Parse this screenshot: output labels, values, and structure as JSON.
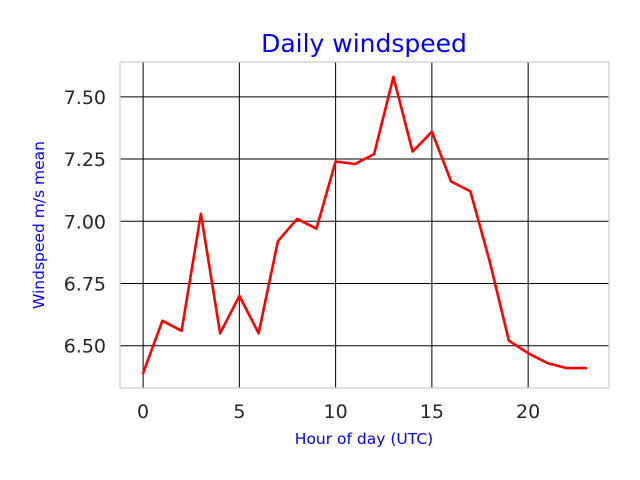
{
  "chart_data": {
    "type": "line",
    "title": "Daily windspeed",
    "xlabel": "Hour of day (UTC)",
    "ylabel": "Windspeed m/s mean",
    "xlim": [
      -1.2,
      24.2
    ],
    "ylim": [
      6.33,
      7.64
    ],
    "xticks": [
      0,
      5,
      10,
      15,
      20
    ],
    "yticks": [
      6.5,
      6.75,
      7.0,
      7.25,
      7.5
    ],
    "xtick_labels": [
      "0",
      "5",
      "10",
      "15",
      "20"
    ],
    "ytick_labels": [
      "6.50",
      "6.75",
      "7.00",
      "7.25",
      "7.50"
    ],
    "grid": true,
    "colors": {
      "line": "#ff0000",
      "title": "#0000ff",
      "labels": "#0000ff",
      "grid": "#000000",
      "spine": "#cccccc",
      "ticks": "#262626"
    },
    "series": [
      {
        "x": [
          0,
          1,
          2,
          3,
          4,
          5,
          6,
          7,
          8,
          9,
          10,
          11,
          12,
          13,
          14,
          15,
          16,
          17,
          18,
          19,
          20,
          21,
          22,
          23
        ],
        "values": [
          6.39,
          6.6,
          6.56,
          7.03,
          6.55,
          6.7,
          6.55,
          6.92,
          7.01,
          6.97,
          7.24,
          7.23,
          7.27,
          7.58,
          7.28,
          7.36,
          7.16,
          7.12,
          6.84,
          6.52,
          6.47,
          6.43,
          6.41,
          6.41
        ]
      }
    ]
  }
}
